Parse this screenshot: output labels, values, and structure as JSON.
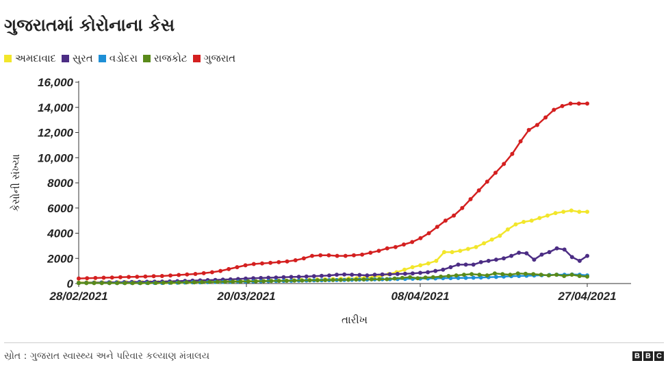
{
  "chart_data": {
    "type": "line",
    "title": "ગુજરાતમાં કોરોનાના કેસ",
    "xlabel": "તારીખ",
    "ylabel": "કેસોની સંખ્યા",
    "ylim": [
      0,
      16000
    ],
    "yticks": [
      0,
      2000,
      4000,
      6000,
      8000,
      10000,
      12000,
      14000,
      16000
    ],
    "ytick_labels": [
      "0",
      "2000",
      "4000",
      "6000",
      "8000",
      "10,000",
      "12,000",
      "14,000",
      "16,000"
    ],
    "x_start": "28/02/2021",
    "x_end": "27/04/2021",
    "xtick_labels": [
      "28/02/2021",
      "20/03/2021",
      "08/04/2021",
      "27/04/2021"
    ],
    "grid": "none",
    "legend": "top-left",
    "series": [
      {
        "name": "અમદાવાદ",
        "color": "#f2e62b",
        "values": [
          100,
          100,
          100,
          100,
          100,
          100,
          100,
          100,
          100,
          100,
          100,
          100,
          110,
          120,
          130,
          140,
          150,
          160,
          170,
          180,
          190,
          200,
          210,
          220,
          230,
          240,
          250,
          260,
          280,
          300,
          320,
          340,
          360,
          380,
          400,
          420,
          460,
          500,
          600,
          750,
          900,
          1100,
          1300,
          1450,
          1600,
          1800,
          2500,
          2500,
          2600,
          2750,
          2900,
          3200,
          3500,
          3800,
          4300,
          4700,
          4900,
          5000,
          5200,
          5400,
          5600,
          5700,
          5800,
          5700,
          5700
        ]
      },
      {
        "name": "સુરત",
        "color": "#4c2d84",
        "values": [
          50,
          60,
          70,
          80,
          90,
          100,
          110,
          120,
          130,
          140,
          150,
          160,
          170,
          190,
          210,
          230,
          250,
          270,
          290,
          310,
          330,
          360,
          390,
          420,
          440,
          460,
          480,
          500,
          520,
          540,
          560,
          580,
          610,
          640,
          700,
          720,
          700,
          680,
          650,
          700,
          720,
          740,
          760,
          780,
          800,
          850,
          900,
          1000,
          1100,
          1300,
          1500,
          1500,
          1500,
          1700,
          1800,
          1900,
          2000,
          2200,
          2450,
          2400,
          1900,
          2300,
          2500,
          2800,
          2700,
          2100,
          1800,
          2200
        ]
      },
      {
        "name": "વડોદરા",
        "color": "#1e8fd6",
        "values": [
          50,
          50,
          50,
          50,
          50,
          50,
          50,
          50,
          50,
          50,
          50,
          50,
          60,
          70,
          80,
          90,
          100,
          110,
          120,
          130,
          140,
          150,
          160,
          170,
          180,
          190,
          200,
          210,
          220,
          230,
          240,
          250,
          260,
          270,
          280,
          290,
          300,
          310,
          320,
          330,
          340,
          350,
          360,
          370,
          380,
          390,
          400,
          410,
          420,
          430,
          440,
          450,
          460,
          480,
          500,
          520,
          550,
          580,
          600,
          620,
          640,
          660,
          680,
          700,
          700,
          720,
          700,
          650
        ]
      },
      {
        "name": "રાજકોટ",
        "color": "#5a8a1a",
        "values": [
          30,
          30,
          30,
          30,
          30,
          30,
          30,
          30,
          30,
          40,
          50,
          60,
          70,
          80,
          90,
          100,
          110,
          120,
          130,
          140,
          150,
          160,
          170,
          180,
          190,
          200,
          210,
          220,
          230,
          240,
          250,
          260,
          270,
          280,
          290,
          300,
          310,
          320,
          330,
          340,
          350,
          400,
          450,
          500,
          420,
          480,
          500,
          550,
          600,
          650,
          700,
          750,
          700,
          650,
          800,
          750,
          700,
          800,
          780,
          750,
          700,
          650,
          700,
          600,
          700,
          600,
          550
        ]
      },
      {
        "name": "ગુજરાત",
        "color": "#d42020",
        "values": [
          400,
          420,
          440,
          460,
          480,
          500,
          520,
          540,
          560,
          580,
          600,
          640,
          680,
          720,
          760,
          820,
          900,
          1000,
          1150,
          1300,
          1450,
          1550,
          1600,
          1650,
          1700,
          1750,
          1850,
          2000,
          2200,
          2250,
          2250,
          2200,
          2200,
          2250,
          2300,
          2450,
          2600,
          2800,
          2900,
          3100,
          3300,
          3600,
          4000,
          4500,
          5000,
          5400,
          6000,
          6700,
          7400,
          8100,
          8800,
          9500,
          10300,
          11300,
          12200,
          12600,
          13200,
          13800,
          14100,
          14300,
          14300,
          14300
        ]
      }
    ]
  },
  "footer": {
    "source": "સ્રોત : ગુજરાત સ્વાસ્થ્ય અને પરિવાર કલ્યાણ મંત્રાલય",
    "brand": [
      "B",
      "B",
      "C"
    ]
  }
}
